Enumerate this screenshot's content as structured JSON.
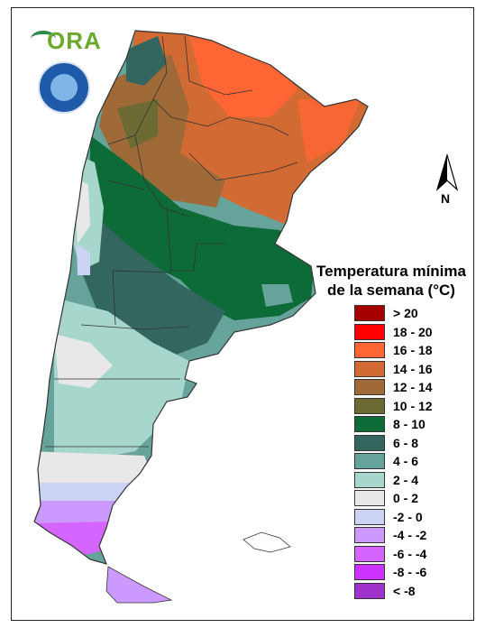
{
  "title_line1": "Temperatura mínima",
  "title_line2": "de la semana (°C)",
  "north_label": "N",
  "logos": {
    "ora": "ORA"
  },
  "legend": [
    {
      "label": "> 20",
      "color": "#a50000"
    },
    {
      "label": "18 - 20",
      "color": "#ff0000"
    },
    {
      "label": "16 - 18",
      "color": "#ff6633"
    },
    {
      "label": "14 - 16",
      "color": "#d26a33"
    },
    {
      "label": "12 - 14",
      "color": "#a06a38"
    },
    {
      "label": "10 - 12",
      "color": "#6b6b33"
    },
    {
      "label": "8 - 10",
      "color": "#0d6b38"
    },
    {
      "label": "6 - 8",
      "color": "#33665e"
    },
    {
      "label": "4 - 6",
      "color": "#66a39b"
    },
    {
      "label": "2 - 4",
      "color": "#a6d6cc"
    },
    {
      "label": "0 - 2",
      "color": "#e8e8e8"
    },
    {
      "label": "-2 - 0",
      "color": "#ccd3f5"
    },
    {
      "label": "-4 - -2",
      "color": "#cc99ff"
    },
    {
      "label": "-6 - -4",
      "color": "#d466ff"
    },
    {
      "label": "-8 - -6",
      "color": "#cc33ff"
    },
    {
      "label": "< -8",
      "color": "#a033cc"
    }
  ]
}
